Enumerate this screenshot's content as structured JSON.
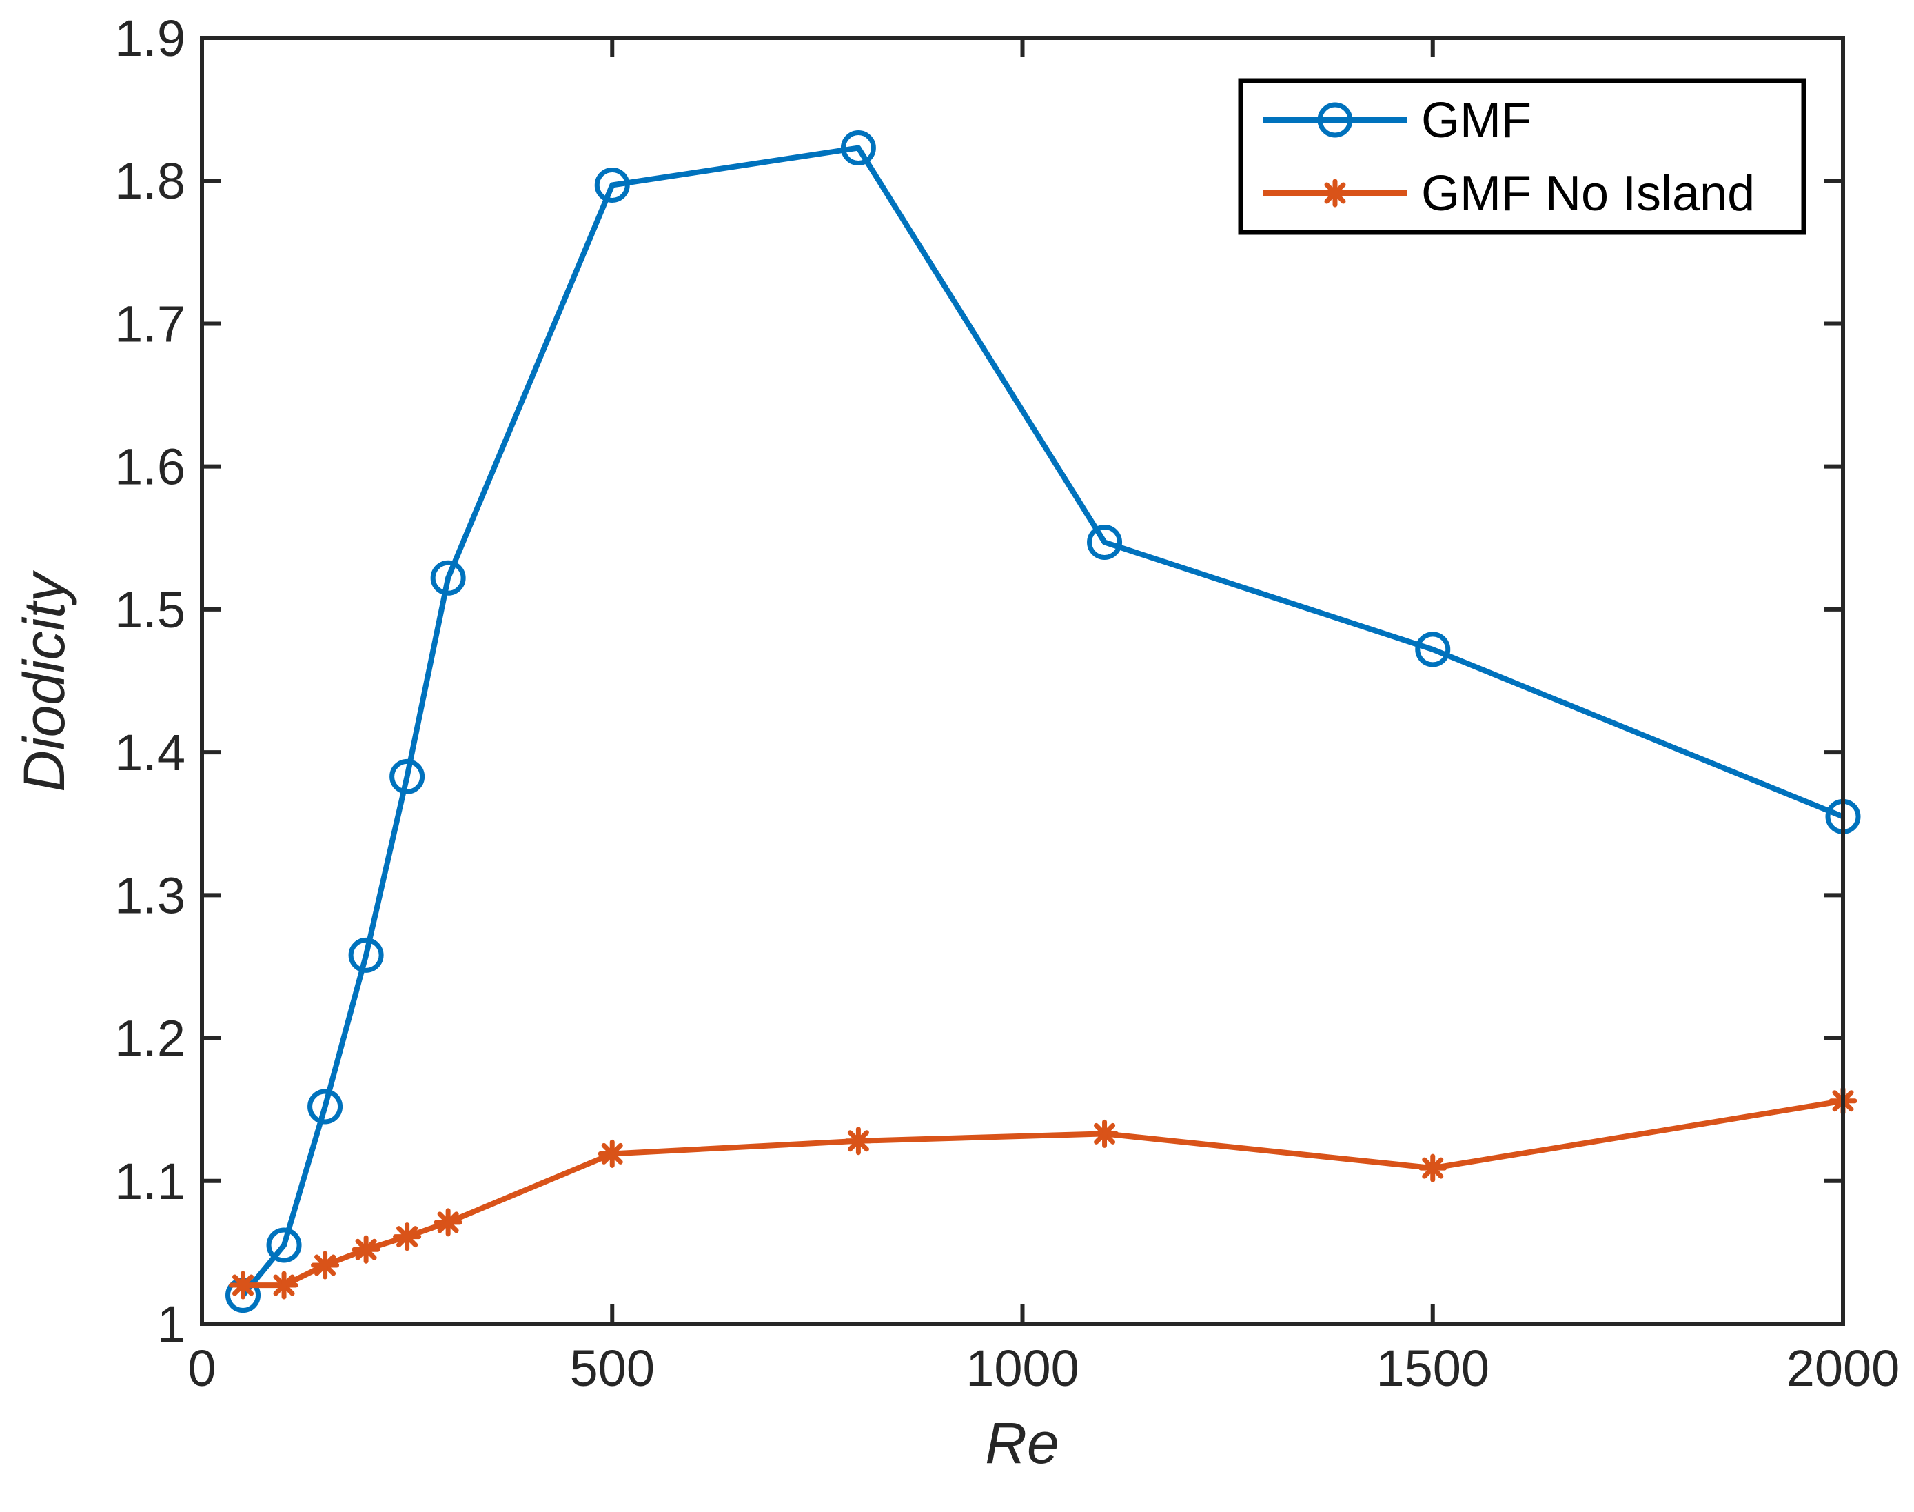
{
  "chart_data": {
    "type": "line",
    "title": "",
    "xlabel": "Re",
    "ylabel": "Diodicity",
    "xlim": [
      0,
      2000
    ],
    "ylim": [
      1,
      1.9
    ],
    "xticks": [
      0,
      500,
      1000,
      1500,
      2000
    ],
    "xtick_labels": [
      "0",
      "500",
      "1000",
      "1500",
      "2000"
    ],
    "yticks": [
      1,
      1.1,
      1.2,
      1.3,
      1.4,
      1.5,
      1.6,
      1.7,
      1.8,
      1.9
    ],
    "ytick_labels": [
      "1",
      "1.1",
      "1.2",
      "1.3",
      "1.4",
      "1.5",
      "1.6",
      "1.7",
      "1.8",
      "1.9"
    ],
    "grid": false,
    "legend_position": "top-right",
    "series": [
      {
        "name": "GMF",
        "color": "#0072BD",
        "marker": "circle",
        "x": [
          50,
          100,
          150,
          200,
          250,
          300,
          500,
          800,
          1100,
          1500,
          2000
        ],
        "y": [
          1.02,
          1.055,
          1.152,
          1.258,
          1.383,
          1.522,
          1.797,
          1.823,
          1.547,
          1.472,
          1.355
        ]
      },
      {
        "name": "GMF No Island",
        "color": "#D95319",
        "marker": "asterisk",
        "x": [
          50,
          100,
          150,
          200,
          250,
          300,
          500,
          800,
          1100,
          1500,
          2000
        ],
        "y": [
          1.027,
          1.027,
          1.041,
          1.052,
          1.061,
          1.071,
          1.119,
          1.128,
          1.133,
          1.109,
          1.156
        ]
      }
    ]
  }
}
